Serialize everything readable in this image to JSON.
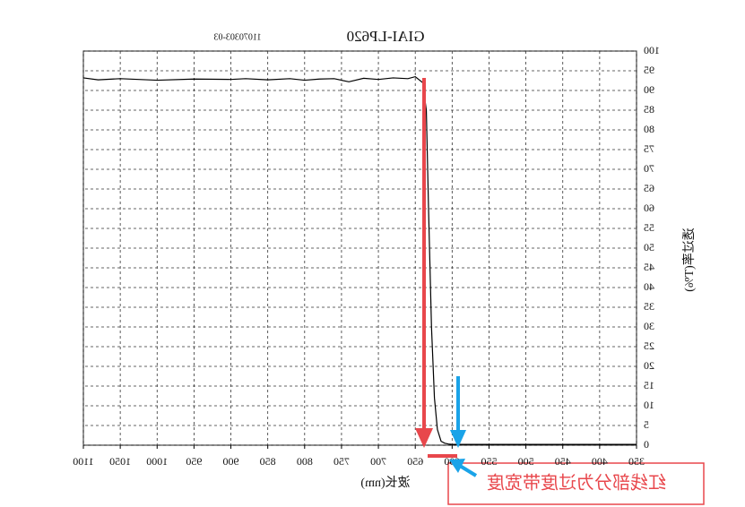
{
  "chart_data": {
    "type": "line",
    "title": "GIAI-LP620",
    "code": "11070303-03",
    "x_label": "波长(nm)",
    "y_label": "透过率(T%)",
    "note": "红线部分为过度带宽度",
    "x": [
      350,
      400,
      450,
      500,
      550,
      600,
      605,
      610,
      615,
      620,
      624,
      628,
      632,
      635,
      640,
      650,
      660,
      680,
      700,
      720,
      740,
      760,
      780,
      800,
      820,
      850,
      880,
      900,
      950,
      1000,
      1050,
      1080,
      1100
    ],
    "series": [
      {
        "name": "T",
        "color": "#000000",
        "values": [
          0.2,
          0.2,
          0.2,
          0.2,
          0.2,
          0.2,
          0.3,
          0.5,
          1,
          4,
          12,
          30,
          60,
          85,
          92,
          93.5,
          93,
          93.2,
          92.8,
          93.1,
          92.2,
          93,
          92.9,
          92.6,
          93,
          92.7,
          93,
          92.8,
          92.9,
          92.6,
          93,
          92.7,
          93.2
        ]
      }
    ],
    "xlim": [
      350,
      1100
    ],
    "xticks": [
      350,
      400,
      450,
      500,
      550,
      600,
      650,
      700,
      750,
      800,
      850,
      900,
      950,
      1000,
      1050,
      1100
    ],
    "ylim": [
      0,
      100
    ],
    "yticks": [
      0,
      5,
      10,
      15,
      20,
      25,
      30,
      35,
      40,
      45,
      50,
      55,
      60,
      65,
      70,
      75,
      80,
      85,
      90,
      95,
      100
    ],
    "grid": true
  }
}
